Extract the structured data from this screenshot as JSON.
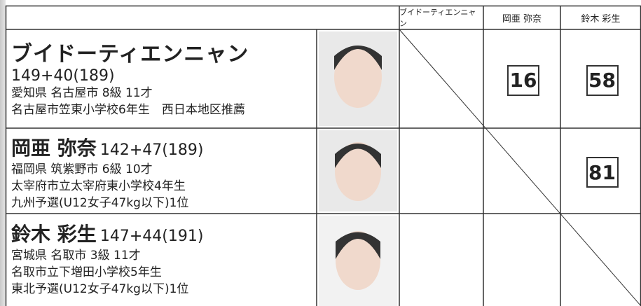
{
  "table": {
    "headers": [
      "ブイドーティエンニャン",
      "岡亜 弥奈",
      "鈴木 彩生"
    ],
    "rows": [
      {
        "name": "ブイドーティエンニャン",
        "measure": "149+40(189)",
        "lines": [
          "愛知県 名古屋市 8級 11才",
          "名古屋市笠東小学校6年生　西日本地区推薦"
        ],
        "scores": [
          null,
          16,
          58
        ]
      },
      {
        "name": "岡亜 弥奈",
        "measure": "142+47(189)",
        "lines": [
          "福岡県 筑紫野市 6級 10才",
          "太宰府市立太宰府東小学校4年生",
          "九州予選(U12女子47kg以下)1位"
        ],
        "scores": [
          null,
          null,
          81
        ]
      },
      {
        "name": "鈴木 彩生",
        "measure": "147+44(191)",
        "lines": [
          "宮城県 名取市 3級 11才",
          "名取市立下増田小学校5年生",
          "東北予選(U12女子47kg以下)1位"
        ],
        "scores": [
          null,
          null,
          null
        ]
      }
    ]
  }
}
